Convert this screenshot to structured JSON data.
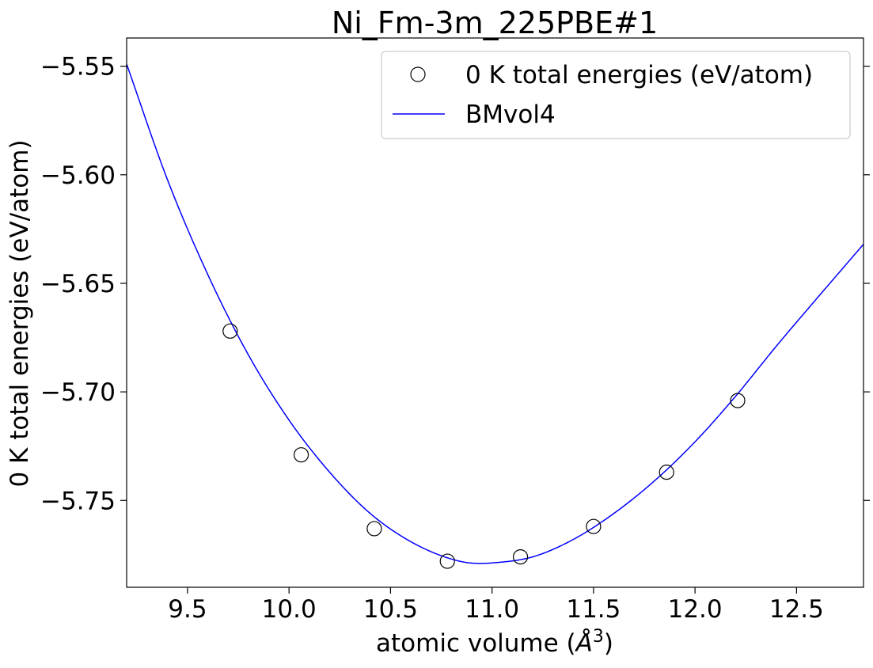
{
  "chart_data": {
    "type": "scatter",
    "title": "Ni_Fm-3m_225PBE#1",
    "xlabel_main": "atomic volume (",
    "xlabel_unit": "Å",
    "xlabel_exp": "3",
    "xlabel_close": ")",
    "ylabel": "0 K total energies (eV/atom)",
    "xlim": [
      9.2,
      12.83
    ],
    "ylim": [
      -5.79,
      -5.537
    ],
    "xticks": [
      9.5,
      10.0,
      10.5,
      11.0,
      11.5,
      12.0,
      12.5
    ],
    "xtick_labels": [
      "9.5",
      "10.0",
      "10.5",
      "11.0",
      "11.5",
      "12.0",
      "12.5"
    ],
    "yticks": [
      -5.55,
      -5.6,
      -5.65,
      -5.7,
      -5.75
    ],
    "ytick_labels": [
      "−5.55",
      "−5.60",
      "−5.65",
      "−5.70",
      "−5.75"
    ],
    "grid": false,
    "legend_position": "top-right",
    "series": [
      {
        "name": "0 K total energies (eV/atom)",
        "kind": "scatter",
        "marker": "open-circle",
        "color": "#000000",
        "x": [
          9.71,
          10.06,
          10.42,
          10.78,
          11.14,
          11.5,
          11.86,
          12.21
        ],
        "y": [
          -5.672,
          -5.729,
          -5.763,
          -5.778,
          -5.776,
          -5.762,
          -5.737,
          -5.704
        ]
      },
      {
        "name": "BMvol4",
        "kind": "line",
        "color": "#0000ff",
        "fit_min_x": 10.93,
        "fit_min_y": -5.779,
        "x": [
          9.2,
          9.4,
          9.6,
          9.8,
          10.0,
          10.2,
          10.4,
          10.6,
          10.8,
          10.93,
          11.0,
          11.2,
          11.4,
          11.6,
          11.8,
          12.0,
          12.2,
          12.4,
          12.6,
          12.83
        ],
        "y": [
          -5.549,
          -5.602,
          -5.646,
          -5.683,
          -5.713,
          -5.737,
          -5.756,
          -5.769,
          -5.777,
          -5.779,
          -5.7788,
          -5.776,
          -5.768,
          -5.756,
          -5.741,
          -5.723,
          -5.702,
          -5.679,
          -5.657,
          -5.632
        ]
      }
    ]
  }
}
